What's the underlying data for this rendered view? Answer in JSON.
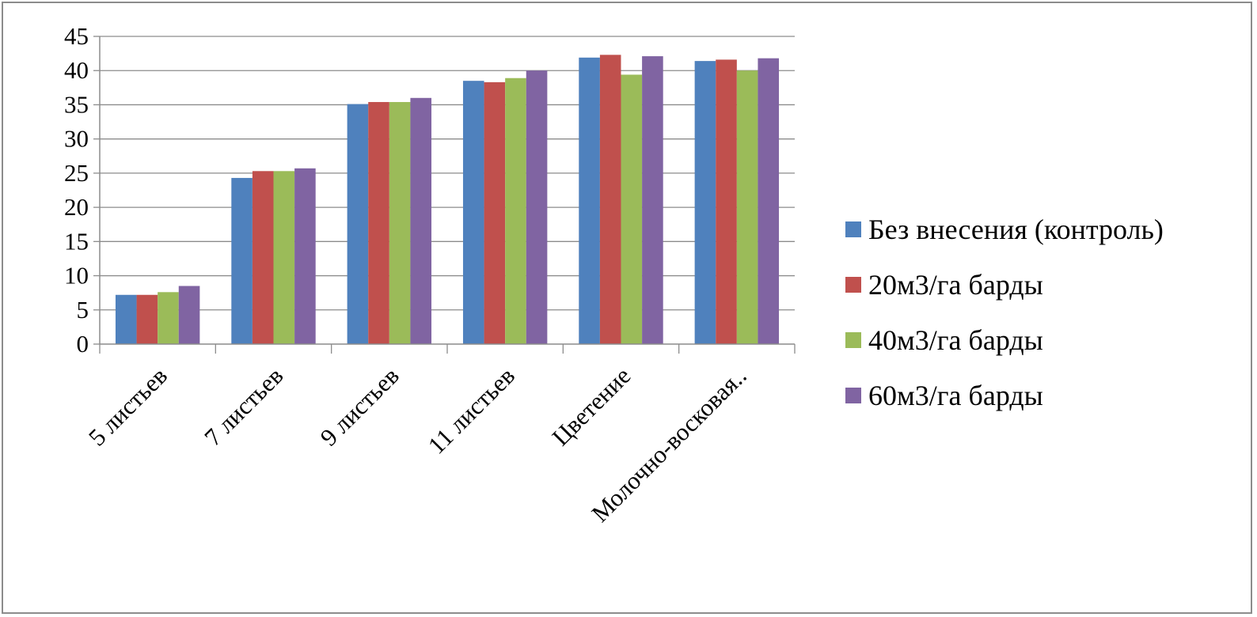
{
  "chart_data": {
    "type": "bar",
    "categories": [
      "5 листьев",
      "7 листьев",
      "9 листьев",
      "11 листьев",
      "Цветение",
      "Молочно-восковая.."
    ],
    "series": [
      {
        "name": "Без внесения (контроль)",
        "color": "#4F81BD",
        "values": [
          7.2,
          24.3,
          35.1,
          38.5,
          41.9,
          41.4
        ]
      },
      {
        "name": "20м3/га барды",
        "color": "#C0504D",
        "values": [
          7.2,
          25.3,
          35.4,
          38.3,
          42.3,
          41.6
        ]
      },
      {
        "name": "40м3/га барды",
        "color": "#9BBB59",
        "values": [
          7.6,
          25.3,
          35.4,
          38.9,
          39.4,
          40.0
        ]
      },
      {
        "name": "60м3/га барды",
        "color": "#8064A2",
        "values": [
          8.5,
          25.7,
          36.0,
          40.0,
          42.1,
          41.8
        ]
      }
    ],
    "ylim": [
      0,
      45
    ],
    "yticks": [
      0,
      5,
      10,
      15,
      20,
      25,
      30,
      35,
      40,
      45
    ],
    "grid": true,
    "legend": "right"
  }
}
